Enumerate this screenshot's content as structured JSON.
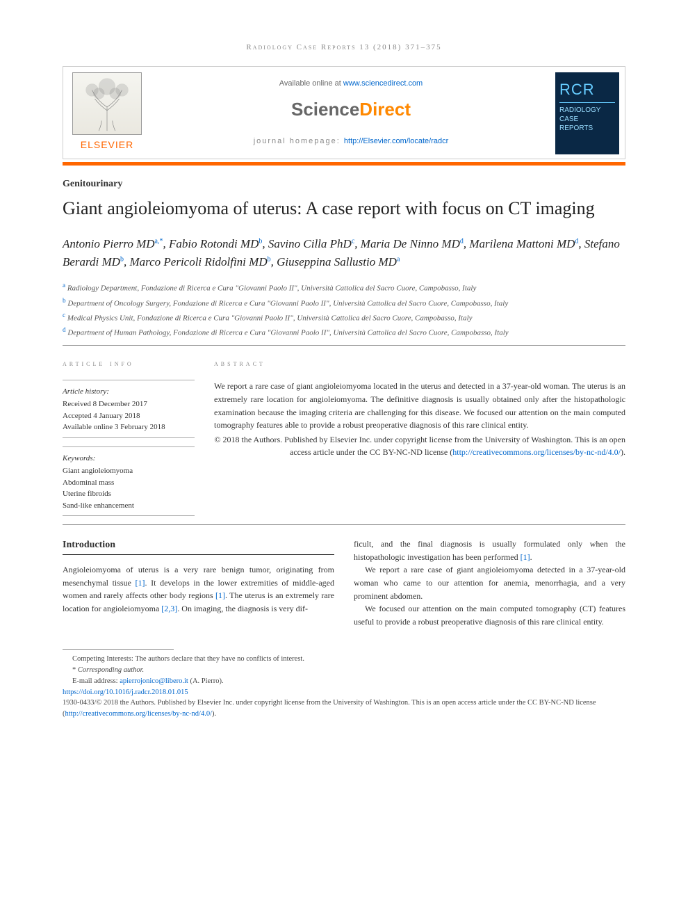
{
  "journal_reference": "Radiology Case Reports 13 (2018) 371–375",
  "header": {
    "available_text": "Available online at ",
    "available_link": "www.sciencedirect.com",
    "sd_logo_left": "Science",
    "sd_logo_right": "Direct",
    "homepage_label": "journal homepage: ",
    "homepage_url": "http://Elsevier.com/locate/radcr",
    "elsevier_name": "ELSEVIER",
    "cover_rcr": "RCR",
    "cover_line1": "RADIOLOGY",
    "cover_line2": "CASE",
    "cover_line3": "REPORTS"
  },
  "section_label": "Genitourinary",
  "title": "Giant angioleiomyoma of uterus: A case report with focus on CT imaging",
  "authors": [
    {
      "name": "Antonio Pierro MD",
      "aff": "a,*"
    },
    {
      "name": "Fabio Rotondi MD",
      "aff": "b"
    },
    {
      "name": "Savino Cilla PhD",
      "aff": "c"
    },
    {
      "name": "Maria De Ninno MD",
      "aff": "d"
    },
    {
      "name": "Marilena Mattoni MD",
      "aff": "d"
    },
    {
      "name": "Stefano Berardi MD",
      "aff": "b"
    },
    {
      "name": "Marco Pericoli Ridolfini MD",
      "aff": "b"
    },
    {
      "name": "Giuseppina Sallustio MD",
      "aff": "a"
    }
  ],
  "affiliations": [
    {
      "sup": "a",
      "text": "Radiology Department, Fondazione di Ricerca e Cura \"Giovanni Paolo II\", Università Cattolica del Sacro Cuore, Campobasso, Italy"
    },
    {
      "sup": "b",
      "text": "Department of Oncology Surgery, Fondazione di Ricerca e Cura \"Giovanni Paolo II\", Università Cattolica del Sacro Cuore, Campobasso, Italy"
    },
    {
      "sup": "c",
      "text": "Medical Physics Unit, Fondazione di Ricerca e Cura \"Giovanni Paolo II\", Università Cattolica del Sacro Cuore, Campobasso, Italy"
    },
    {
      "sup": "d",
      "text": "Department of Human Pathology, Fondazione di Ricerca e Cura \"Giovanni Paolo II\", Università Cattolica del Sacro Cuore, Campobasso, Italy"
    }
  ],
  "article_info": {
    "heading": "article info",
    "history_label": "Article history:",
    "received": "Received 8 December 2017",
    "accepted": "Accepted 4 January 2018",
    "online": "Available online 3 February 2018",
    "keywords_label": "Keywords:",
    "keywords": [
      "Giant angioleiomyoma",
      "Abdominal mass",
      "Uterine fibroids",
      "Sand-like enhancement"
    ]
  },
  "abstract": {
    "heading": "abstract",
    "body": "We report a rare case of giant angioleiomyoma located in the uterus and detected in a 37-year-old woman. The uterus is an extremely rare location for angioleiomyoma. The definitive diagnosis is usually obtained only after the histopathologic examination because the imaging criteria are challenging for this disease. We focused our attention on the main computed tomography features able to provide a robust preoperative diagnosis of this rare clinical entity.",
    "copyright": "© 2018 the Authors. Published by Elsevier Inc. under copyright license from the University of Washington. This is an open access article under the CC BY-NC-ND license (",
    "license_url": "http://creativecommons.org/licenses/by-nc-nd/4.0/",
    "closing": ")."
  },
  "intro": {
    "heading": "Introduction",
    "col1_p1a": "Angioleiomyoma of uterus is a very rare benign tumor, originating from mesenchymal tissue ",
    "col1_ref1": "[1]",
    "col1_p1b": ". It develops in the lower extremities of middle-aged women and rarely affects other body regions ",
    "col1_ref2": "[1]",
    "col1_p1c": ". The uterus is an extremely rare location for angioleiomyoma ",
    "col1_ref3": "[2,3]",
    "col1_p1d": ". On imaging, the diagnosis is very dif-",
    "col2_p1a": "ficult, and the final diagnosis is usually formulated only when the histopathologic investigation has been performed ",
    "col2_ref1": "[1]",
    "col2_p1b": ".",
    "col2_p2": "We report a rare case of giant angioleiomyoma detected in a 37-year-old woman who came to our attention for anemia, menorrhagia, and a very prominent abdomen.",
    "col2_p3": "We focused our attention on the main computed tomography (CT) features useful to provide a robust preoperative diagnosis of this rare clinical entity."
  },
  "footnotes": {
    "competing": "Competing Interests: The authors declare that they have no conflicts of interest.",
    "corr_marker": "* ",
    "corr_label": "Corresponding author.",
    "email_label": "E-mail address: ",
    "email": "apierrojonico@libero.it",
    "email_attr": " (A. Pierro).",
    "doi": "https://doi.org/10.1016/j.radcr.2018.01.015",
    "issn_line": "1930-0433/© 2018 the Authors. Published by Elsevier Inc. under copyright license from the University of Washington. This is an open access article under the CC BY-NC-ND license (",
    "license_url": "http://creativecommons.org/licenses/by-nc-nd/4.0/",
    "closing": ")."
  },
  "colors": {
    "orange": "#ff6600",
    "link": "#0066cc",
    "navy": "#0a2845"
  }
}
